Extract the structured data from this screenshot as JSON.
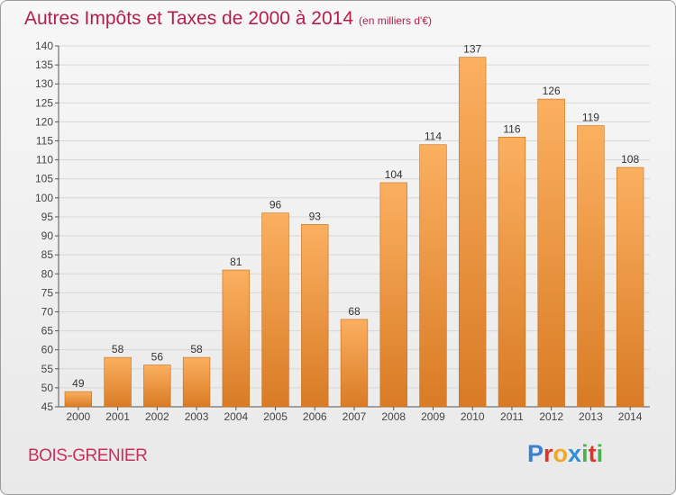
{
  "header": {
    "title": "Autres Impôts et Taxes de 2000 à 2014",
    "unit": "(en milliers d'€)"
  },
  "footer": {
    "commune": "BOIS-GRENIER",
    "logo": {
      "letters": [
        "P",
        "r",
        "o",
        "x",
        "i",
        "t",
        "i"
      ],
      "colors": [
        "#3b7fd0",
        "#e2332b",
        "#f5a623",
        "#2f8fd8",
        "#4caf50",
        "#e2332b",
        "#4caf50"
      ]
    }
  },
  "colors": {
    "bar_light": "#fbb060",
    "bar_dark": "#d97b25",
    "bar_edge": "#c96b12",
    "title": "#b3204a"
  },
  "chart_data": {
    "type": "bar",
    "title": "Autres Impôts et Taxes de 2000 à 2014",
    "categories": [
      "2000",
      "2001",
      "2002",
      "2003",
      "2004",
      "2005",
      "2006",
      "2007",
      "2008",
      "2009",
      "2010",
      "2011",
      "2012",
      "2013",
      "2014"
    ],
    "values": [
      49,
      58,
      56,
      58,
      81,
      96,
      93,
      68,
      104,
      114,
      137,
      116,
      126,
      119,
      108
    ],
    "data_labels": [
      "49",
      "58",
      "56",
      "58",
      "81",
      "96",
      "93",
      "68",
      "104",
      "114",
      "137",
      "116",
      "126",
      "119",
      "108"
    ],
    "ylim": [
      45,
      140
    ],
    "yticks": [
      "45",
      "50",
      "55",
      "60",
      "65",
      "70",
      "75",
      "80",
      "85",
      "90",
      "95",
      "100",
      "105",
      "110",
      "115",
      "120",
      "125",
      "130",
      "135",
      "140"
    ],
    "grid": true,
    "xlabel": "",
    "ylabel": ""
  }
}
